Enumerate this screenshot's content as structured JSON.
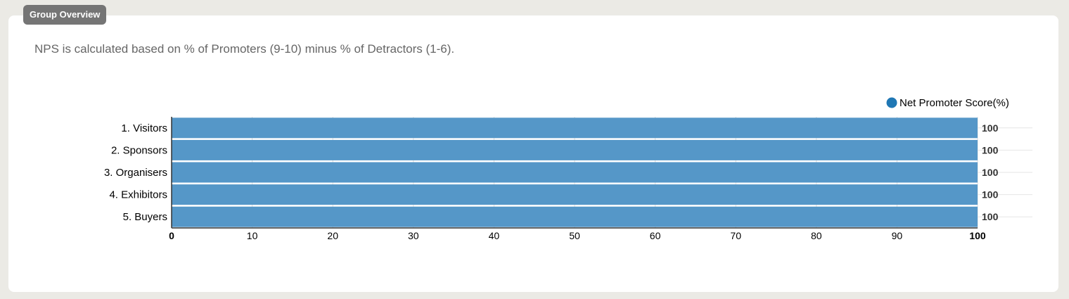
{
  "header": {
    "badge_label": "Group Overview",
    "description": "NPS is calculated based on % of Promoters (9-10) minus % of Detractors (1-6)."
  },
  "colors": {
    "bar": "#5597c8",
    "legend_dot": "#1f77b4",
    "grid": "#dddddd"
  },
  "chart_data": {
    "type": "bar",
    "orientation": "horizontal",
    "categories": [
      "1. Visitors",
      "2. Sponsors",
      "3. Organisers",
      "4. Exhibitors",
      "5. Buyers"
    ],
    "series": [
      {
        "name": "Net Promoter Score(%)",
        "values": [
          100,
          100,
          100,
          100,
          100
        ]
      }
    ],
    "data_labels": [
      "100",
      "100",
      "100",
      "100",
      "100"
    ],
    "xlim": [
      0,
      100
    ],
    "xticks": [
      0,
      10,
      20,
      30,
      40,
      50,
      60,
      70,
      80,
      90,
      100
    ],
    "grid": true,
    "legend_position": "top-right"
  }
}
